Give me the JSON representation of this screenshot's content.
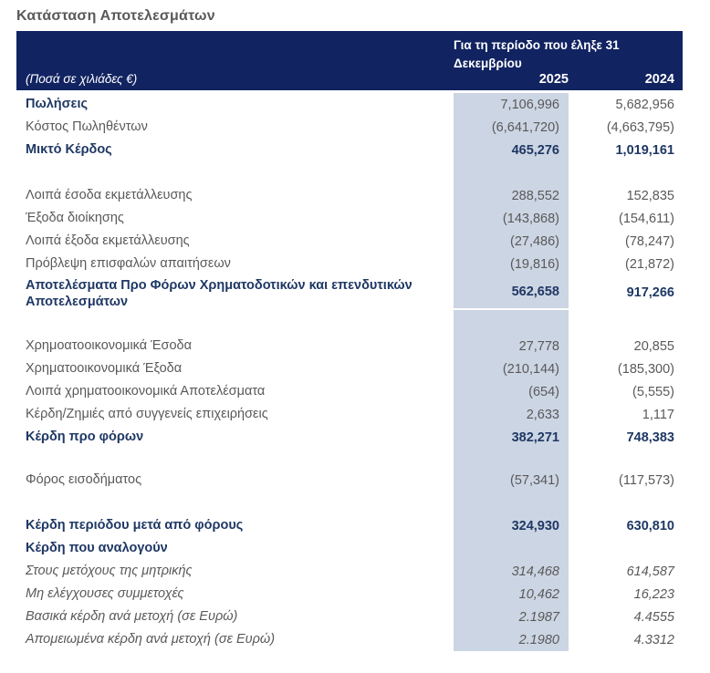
{
  "title": "Κατάσταση Αποτελεσμάτων",
  "header": {
    "units_note": "(Ποσά σε χιλιάδες €)",
    "period_label": "Για τη περίοδο που έληξε  31 Δεκεμβρίου",
    "col_2025": "2025",
    "col_2024": "2024"
  },
  "colors": {
    "header_bg": "#112361",
    "shaded_column_bg": "#ccd5e3",
    "bold_text": "#1f3864",
    "regular_text": "#595959",
    "header_text": "#ffffff"
  },
  "rows": [
    {
      "type": "bold-label",
      "label": "Πωλήσεις",
      "v2025": "7,106,996",
      "v2024": "5,682,956"
    },
    {
      "type": "normal",
      "label": "Κόστος Πωληθέντων",
      "v2025": "(6,641,720)",
      "v2024": "(4,663,795)"
    },
    {
      "type": "bold",
      "label": "Μικτό Κέρδος",
      "v2025": "465,276",
      "v2024": "1,019,161"
    },
    {
      "type": "blank"
    },
    {
      "type": "normal",
      "label": "Λοιπά έσοδα εκμετάλλευσης",
      "v2025": "288,552",
      "v2024": "152,835"
    },
    {
      "type": "normal",
      "label": "Έξοδα διοίκησης",
      "v2025": "(143,868)",
      "v2024": "(154,611)"
    },
    {
      "type": "normal",
      "label": "Λοιπά έξοδα εκμετάλλευσης",
      "v2025": "(27,486)",
      "v2024": "(78,247)"
    },
    {
      "type": "normal",
      "label": "Πρόβλεψη επισφαλών απαιτήσεων",
      "v2025": "(19,816)",
      "v2024": "(21,872)"
    },
    {
      "type": "section",
      "label": "Αποτελέσματα Προ Φόρων Χρηματοδοτικών και επενδυτικών Αποτελεσμάτων",
      "v2025": "562,658",
      "v2024": "917,266",
      "divider": true
    },
    {
      "type": "blank",
      "size": "md"
    },
    {
      "type": "normal",
      "label": "Χρημοατοοικονομικά Έσοδα",
      "v2025": "27,778",
      "v2024": "20,855"
    },
    {
      "type": "normal",
      "label": "Χρηματοοικονομικά Έξοδα",
      "v2025": "(210,144)",
      "v2024": "(185,300)"
    },
    {
      "type": "normal",
      "label": "Λοιπά χρηματοοικονομικά Αποτελέσματα",
      "v2025": "(654)",
      "v2024": "(5,555)"
    },
    {
      "type": "normal",
      "label": "Κέρδη/Ζημιές από συγγενείς επιχειρήσεις",
      "v2025": "2,633",
      "v2024": "1,117"
    },
    {
      "type": "bold",
      "label": "Κέρδη προ φόρων",
      "v2025": "382,271",
      "v2024": "748,383"
    },
    {
      "type": "blank",
      "size": "sm"
    },
    {
      "type": "normal",
      "label": "Φόρος εισοδήματος",
      "v2025": "(57,341)",
      "v2024": "(117,573)"
    },
    {
      "type": "blank"
    },
    {
      "type": "bold",
      "label": "Κέρδη περιόδου μετά από φόρους",
      "v2025": "324,930",
      "v2024": "630,810"
    },
    {
      "type": "bold",
      "label": "Κέρδη που αναλογούν",
      "v2025": "",
      "v2024": ""
    },
    {
      "type": "italic",
      "label": "Στους μετόχους της μητρικής",
      "v2025": "314,468",
      "v2024": "614,587"
    },
    {
      "type": "italic",
      "label": "Μη ελέγχουσες συμμετοχές",
      "v2025": "10,462",
      "v2024": "16,223"
    },
    {
      "type": "italic",
      "label": "Βασικά κέρδη ανά μετοχή (σε Ευρώ)",
      "v2025": "2.1987",
      "v2024": "4.4555"
    },
    {
      "type": "italic",
      "label": "Απομειωμένα κέρδη ανά μετοχή (σε Ευρώ)",
      "v2025": "2.1980",
      "v2024": "4.3312"
    }
  ]
}
